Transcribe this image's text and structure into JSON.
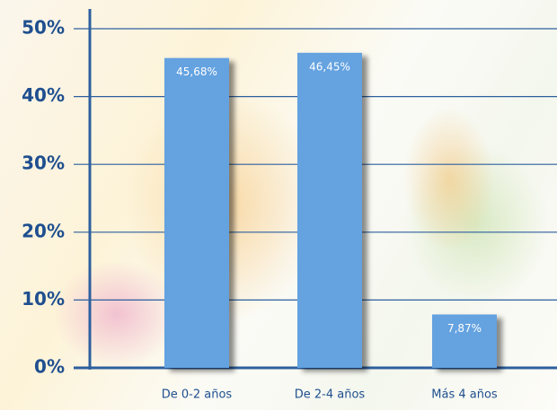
{
  "chart_data": {
    "type": "bar",
    "categories": [
      "De 0-2 años",
      "De 2-4 años",
      "Más 4 años"
    ],
    "values": [
      45.68,
      46.45,
      7.87
    ],
    "value_labels": [
      "45,68%",
      "46,45%",
      "7,87%"
    ],
    "color": "#64a2e0",
    "ylim": [
      0,
      50
    ],
    "yticks": [
      {
        "value": 0,
        "label": "0%"
      },
      {
        "value": 10,
        "label": "10%"
      },
      {
        "value": 20,
        "label": "20%"
      },
      {
        "value": 30,
        "label": "30%"
      },
      {
        "value": 40,
        "label": "40%"
      },
      {
        "value": 50,
        "label": "50%"
      }
    ],
    "grid": true
  }
}
